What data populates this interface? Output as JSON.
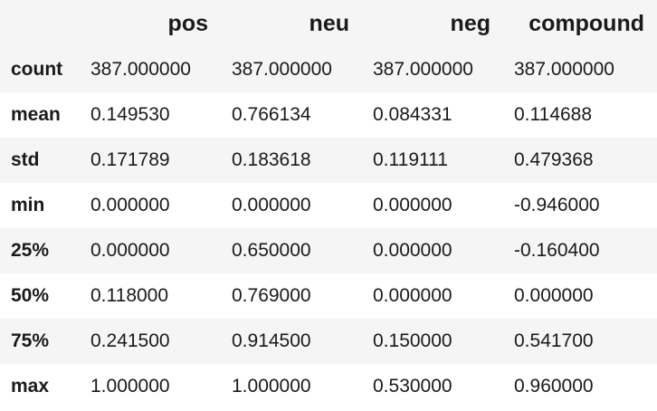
{
  "table": {
    "columns": [
      "pos",
      "neu",
      "neg",
      "compound"
    ],
    "rows": [
      {
        "label": "count",
        "values": [
          "387.000000",
          "387.000000",
          "387.000000",
          "387.000000"
        ]
      },
      {
        "label": "mean",
        "values": [
          "0.149530",
          "0.766134",
          "0.084331",
          "0.114688"
        ]
      },
      {
        "label": "std",
        "values": [
          "0.171789",
          "0.183618",
          "0.119111",
          "0.479368"
        ]
      },
      {
        "label": "min",
        "values": [
          "0.000000",
          "0.000000",
          "0.000000",
          "-0.946000"
        ]
      },
      {
        "label": "25%",
        "values": [
          "0.000000",
          "0.650000",
          "0.000000",
          "-0.160400"
        ]
      },
      {
        "label": "50%",
        "values": [
          "0.118000",
          "0.769000",
          "0.000000",
          "0.000000"
        ]
      },
      {
        "label": "75%",
        "values": [
          "0.241500",
          "0.914500",
          "0.150000",
          "0.541700"
        ]
      },
      {
        "label": "max",
        "values": [
          "1.000000",
          "1.000000",
          "0.530000",
          "0.960000"
        ]
      }
    ]
  },
  "colors": {
    "stripe": "#f5f5f5",
    "text": "#1a1a1a"
  }
}
